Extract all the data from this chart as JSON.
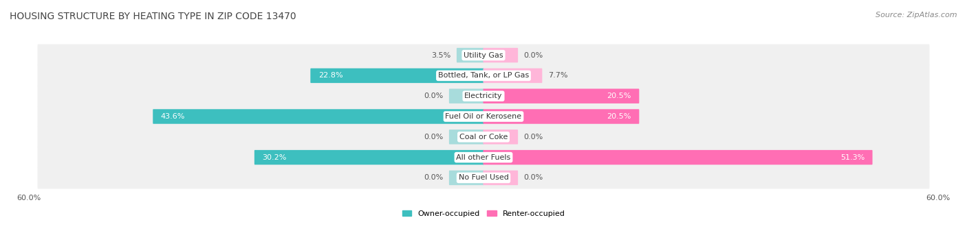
{
  "title": "HOUSING STRUCTURE BY HEATING TYPE IN ZIP CODE 13470",
  "source": "Source: ZipAtlas.com",
  "categories": [
    "Utility Gas",
    "Bottled, Tank, or LP Gas",
    "Electricity",
    "Fuel Oil or Kerosene",
    "Coal or Coke",
    "All other Fuels",
    "No Fuel Used"
  ],
  "owner_values": [
    3.5,
    22.8,
    0.0,
    43.6,
    0.0,
    30.2,
    0.0
  ],
  "renter_values": [
    0.0,
    7.7,
    20.5,
    20.5,
    0.0,
    51.3,
    0.0
  ],
  "owner_color": "#3DBFBF",
  "renter_color": "#FF6EB4",
  "owner_color_light": "#A8DCDC",
  "renter_color_light": "#FFB6D9",
  "row_bg_color": "#F0F0F0",
  "row_bg_alt": "#E8E8E8",
  "axis_limit": 60.0,
  "stub_size": 4.5,
  "title_fontsize": 10,
  "source_fontsize": 8,
  "value_fontsize": 8,
  "cat_fontsize": 8,
  "tick_fontsize": 8
}
